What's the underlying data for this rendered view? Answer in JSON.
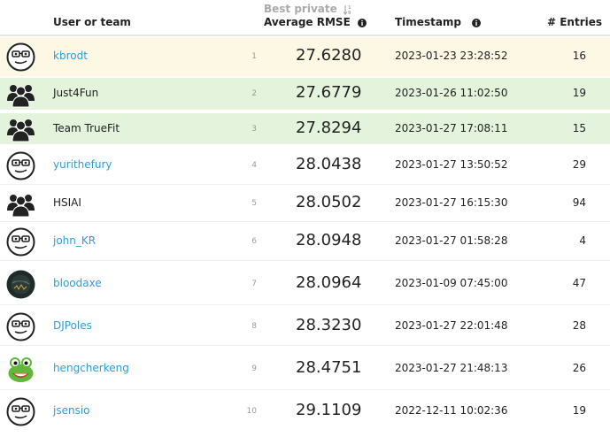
{
  "header": {
    "user_label": "User or team",
    "sort_label": "Best private",
    "score_label": "Average RMSE",
    "timestamp_label": "Timestamp",
    "entries_label": "# Entries"
  },
  "rows": [
    {
      "avatar": "glasses-face-icon",
      "name": "kbrodt",
      "link": true,
      "rank": "1",
      "score": "27.6280",
      "timestamp": "2023-01-23 23:28:52",
      "entries": "16",
      "highlight": "gold"
    },
    {
      "avatar": "team-icon",
      "name": "Just4Fun",
      "link": false,
      "rank": "2",
      "score": "27.6779",
      "timestamp": "2023-01-26 11:02:50",
      "entries": "19",
      "highlight": "green"
    },
    {
      "avatar": "team-icon",
      "name": "Team TrueFit",
      "link": false,
      "rank": "3",
      "score": "27.8294",
      "timestamp": "2023-01-27 17:08:11",
      "entries": "15",
      "highlight": "green"
    },
    {
      "avatar": "glasses-face-icon",
      "name": "yurithefury",
      "link": true,
      "rank": "4",
      "score": "28.0438",
      "timestamp": "2023-01-27 13:50:52",
      "entries": "29",
      "highlight": "none"
    },
    {
      "avatar": "team-icon",
      "name": "HSIAI",
      "link": false,
      "rank": "5",
      "score": "28.0502",
      "timestamp": "2023-01-27 16:15:30",
      "entries": "94",
      "highlight": "none"
    },
    {
      "avatar": "glasses-face-icon",
      "name": "john_KR",
      "link": true,
      "rank": "6",
      "score": "28.0948",
      "timestamp": "2023-01-27 01:58:28",
      "entries": "4",
      "highlight": "none"
    },
    {
      "avatar": "dark-photo-icon",
      "name": "bloodaxe",
      "link": true,
      "rank": "7",
      "score": "28.0964",
      "timestamp": "2023-01-09 07:45:00",
      "entries": "47",
      "highlight": "none"
    },
    {
      "avatar": "glasses-face-icon",
      "name": "DJPoles",
      "link": true,
      "rank": "8",
      "score": "28.3230",
      "timestamp": "2023-01-27 22:01:48",
      "entries": "28",
      "highlight": "none"
    },
    {
      "avatar": "frog-icon",
      "name": "hengcherkeng",
      "link": true,
      "rank": "9",
      "score": "28.4751",
      "timestamp": "2023-01-27 21:48:13",
      "entries": "26",
      "highlight": "none"
    },
    {
      "avatar": "glasses-face-icon",
      "name": "jsensio",
      "link": true,
      "rank": "10",
      "score": "29.1109",
      "timestamp": "2022-12-11 10:02:36",
      "entries": "19",
      "highlight": "none"
    }
  ],
  "colors": {
    "link": "#2a9fd6",
    "gold_row": "#fdf8e3",
    "green_row": "#e3f3dc"
  }
}
